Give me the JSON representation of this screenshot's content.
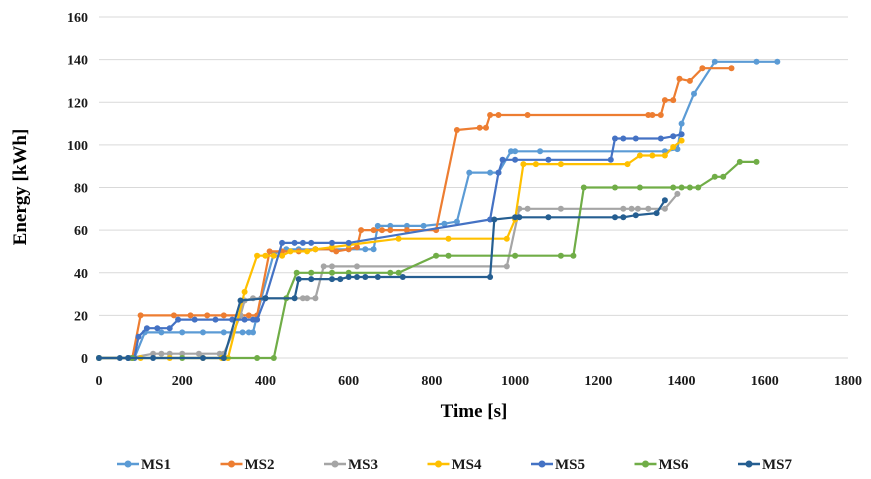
{
  "chart_data": {
    "type": "line",
    "title": "",
    "xlabel": "Time [s]",
    "ylabel": "Energy [kWh]",
    "xlim": [
      0,
      1800
    ],
    "ylim": [
      0,
      160
    ],
    "x_ticks": [
      "0",
      "200",
      "400",
      "600",
      "800",
      "1000",
      "1200",
      "1400",
      "1600",
      "1800"
    ],
    "y_ticks": [
      "0",
      "20",
      "40",
      "60",
      "80",
      "100",
      "120",
      "140",
      "160"
    ],
    "grid": "horizontal",
    "legend_position": "bottom",
    "series": [
      {
        "name": "MS1",
        "color": "#5b9bd5",
        "points": [
          [
            0,
            0
          ],
          [
            85,
            0
          ],
          [
            110,
            12
          ],
          [
            150,
            12
          ],
          [
            200,
            12
          ],
          [
            250,
            12
          ],
          [
            300,
            12
          ],
          [
            345,
            12
          ],
          [
            360,
            12
          ],
          [
            370,
            12
          ],
          [
            390,
            28
          ],
          [
            420,
            49
          ],
          [
            450,
            51
          ],
          [
            480,
            51
          ],
          [
            520,
            51
          ],
          [
            560,
            51
          ],
          [
            600,
            51
          ],
          [
            640,
            51
          ],
          [
            660,
            51
          ],
          [
            670,
            62
          ],
          [
            700,
            62
          ],
          [
            740,
            62
          ],
          [
            780,
            62
          ],
          [
            830,
            63
          ],
          [
            860,
            64
          ],
          [
            890,
            87
          ],
          [
            940,
            87
          ],
          [
            960,
            87
          ],
          [
            990,
            97
          ],
          [
            1000,
            97
          ],
          [
            1060,
            97
          ],
          [
            1360,
            97
          ],
          [
            1390,
            98
          ],
          [
            1400,
            110
          ],
          [
            1430,
            124
          ],
          [
            1480,
            139
          ],
          [
            1580,
            139
          ],
          [
            1630,
            139
          ]
        ]
      },
      {
        "name": "MS2",
        "color": "#ed7d31",
        "points": [
          [
            0,
            0
          ],
          [
            80,
            0
          ],
          [
            100,
            20
          ],
          [
            180,
            20
          ],
          [
            220,
            20
          ],
          [
            260,
            20
          ],
          [
            300,
            20
          ],
          [
            340,
            20
          ],
          [
            360,
            20
          ],
          [
            380,
            20
          ],
          [
            410,
            50
          ],
          [
            440,
            50
          ],
          [
            480,
            50
          ],
          [
            520,
            51
          ],
          [
            560,
            51
          ],
          [
            570,
            50
          ],
          [
            600,
            51
          ],
          [
            620,
            52
          ],
          [
            630,
            60
          ],
          [
            660,
            60
          ],
          [
            680,
            60
          ],
          [
            700,
            60
          ],
          [
            740,
            60
          ],
          [
            810,
            60
          ],
          [
            860,
            107
          ],
          [
            915,
            108
          ],
          [
            930,
            108
          ],
          [
            940,
            114
          ],
          [
            960,
            114
          ],
          [
            1030,
            114
          ],
          [
            1320,
            114
          ],
          [
            1330,
            114
          ],
          [
            1350,
            114
          ],
          [
            1360,
            121
          ],
          [
            1380,
            121
          ],
          [
            1395,
            131
          ],
          [
            1420,
            130
          ],
          [
            1450,
            136
          ],
          [
            1520,
            136
          ]
        ]
      },
      {
        "name": "MS3",
        "color": "#a5a5a5",
        "points": [
          [
            0,
            0
          ],
          [
            75,
            0
          ],
          [
            130,
            2
          ],
          [
            150,
            2
          ],
          [
            170,
            2
          ],
          [
            200,
            2
          ],
          [
            240,
            2
          ],
          [
            290,
            2
          ],
          [
            300,
            2
          ],
          [
            340,
            20
          ],
          [
            350,
            27
          ],
          [
            370,
            28
          ],
          [
            400,
            28
          ],
          [
            490,
            28
          ],
          [
            500,
            28
          ],
          [
            520,
            28
          ],
          [
            540,
            43
          ],
          [
            560,
            43
          ],
          [
            620,
            43
          ],
          [
            980,
            43
          ],
          [
            1010,
            70
          ],
          [
            1030,
            70
          ],
          [
            1110,
            70
          ],
          [
            1260,
            70
          ],
          [
            1280,
            70
          ],
          [
            1295,
            70
          ],
          [
            1320,
            70
          ],
          [
            1360,
            70
          ],
          [
            1390,
            77
          ]
        ]
      },
      {
        "name": "MS4",
        "color": "#ffc000",
        "points": [
          [
            0,
            0
          ],
          [
            100,
            0
          ],
          [
            170,
            0
          ],
          [
            250,
            0
          ],
          [
            295,
            0
          ],
          [
            310,
            0
          ],
          [
            350,
            31
          ],
          [
            380,
            48
          ],
          [
            400,
            48
          ],
          [
            420,
            48
          ],
          [
            440,
            48
          ],
          [
            460,
            50
          ],
          [
            500,
            50
          ],
          [
            520,
            51
          ],
          [
            560,
            52
          ],
          [
            600,
            53
          ],
          [
            720,
            56
          ],
          [
            840,
            56
          ],
          [
            980,
            56
          ],
          [
            1000,
            65
          ],
          [
            1020,
            91
          ],
          [
            1050,
            91
          ],
          [
            1110,
            91
          ],
          [
            1270,
            91
          ],
          [
            1300,
            95
          ],
          [
            1330,
            95
          ],
          [
            1360,
            95
          ],
          [
            1380,
            99
          ],
          [
            1400,
            102
          ]
        ]
      },
      {
        "name": "MS5",
        "color": "#4472c4",
        "points": [
          [
            0,
            0
          ],
          [
            70,
            0
          ],
          [
            85,
            0
          ],
          [
            95,
            10
          ],
          [
            115,
            14
          ],
          [
            140,
            14
          ],
          [
            170,
            14
          ],
          [
            190,
            18
          ],
          [
            230,
            18
          ],
          [
            280,
            18
          ],
          [
            320,
            18
          ],
          [
            350,
            18
          ],
          [
            370,
            18
          ],
          [
            380,
            18
          ],
          [
            400,
            28
          ],
          [
            440,
            54
          ],
          [
            470,
            54
          ],
          [
            490,
            54
          ],
          [
            510,
            54
          ],
          [
            560,
            54
          ],
          [
            600,
            54
          ],
          [
            940,
            65
          ],
          [
            960,
            87
          ],
          [
            970,
            93
          ],
          [
            1000,
            93
          ],
          [
            1080,
            93
          ],
          [
            1230,
            93
          ],
          [
            1240,
            103
          ],
          [
            1260,
            103
          ],
          [
            1290,
            103
          ],
          [
            1350,
            103
          ],
          [
            1380,
            104
          ],
          [
            1400,
            105
          ]
        ]
      },
      {
        "name": "MS6",
        "color": "#70ad47",
        "points": [
          [
            0,
            0
          ],
          [
            80,
            0
          ],
          [
            200,
            0
          ],
          [
            300,
            0
          ],
          [
            380,
            0
          ],
          [
            420,
            0
          ],
          [
            450,
            28
          ],
          [
            475,
            40
          ],
          [
            510,
            40
          ],
          [
            560,
            40
          ],
          [
            600,
            40
          ],
          [
            700,
            40
          ],
          [
            720,
            40
          ],
          [
            810,
            48
          ],
          [
            840,
            48
          ],
          [
            1000,
            48
          ],
          [
            1110,
            48
          ],
          [
            1140,
            48
          ],
          [
            1165,
            80
          ],
          [
            1240,
            80
          ],
          [
            1300,
            80
          ],
          [
            1380,
            80
          ],
          [
            1400,
            80
          ],
          [
            1420,
            80
          ],
          [
            1440,
            80
          ],
          [
            1480,
            85
          ],
          [
            1500,
            85
          ],
          [
            1540,
            92
          ],
          [
            1580,
            92
          ]
        ]
      },
      {
        "name": "MS7",
        "color": "#255e91",
        "points": [
          [
            0,
            0
          ],
          [
            50,
            0
          ],
          [
            70,
            0
          ],
          [
            130,
            0
          ],
          [
            250,
            0
          ],
          [
            300,
            0
          ],
          [
            340,
            27
          ],
          [
            400,
            28
          ],
          [
            470,
            28
          ],
          [
            480,
            37
          ],
          [
            510,
            37
          ],
          [
            560,
            37
          ],
          [
            580,
            37
          ],
          [
            600,
            38
          ],
          [
            620,
            38
          ],
          [
            640,
            38
          ],
          [
            670,
            38
          ],
          [
            730,
            38
          ],
          [
            940,
            38
          ],
          [
            950,
            65
          ],
          [
            1000,
            66
          ],
          [
            1010,
            66
          ],
          [
            1080,
            66
          ],
          [
            1240,
            66
          ],
          [
            1260,
            66
          ],
          [
            1290,
            67
          ],
          [
            1340,
            68
          ],
          [
            1360,
            74
          ]
        ]
      }
    ]
  }
}
